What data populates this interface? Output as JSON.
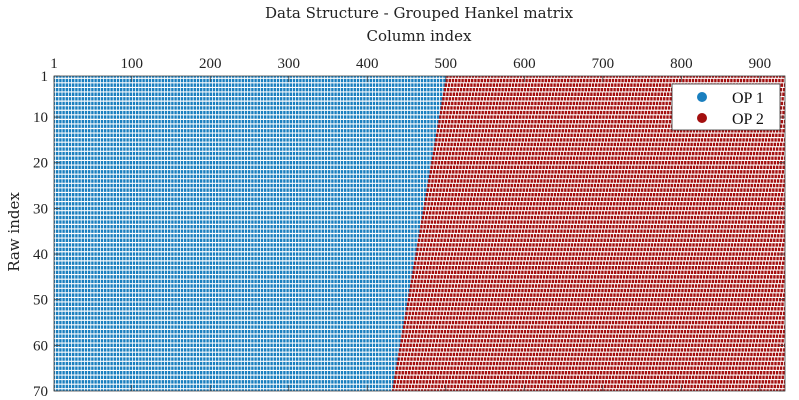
{
  "chart_data": {
    "type": "scatter",
    "title": "Data Structure - Grouped Hankel matrix",
    "xlabel": "Column index",
    "ylabel": "Raw index",
    "xlim": [
      1,
      932
    ],
    "ylim": [
      1,
      70
    ],
    "y_reversed": true,
    "x_axis_position": "top",
    "x_ticks": [
      1,
      100,
      200,
      300,
      400,
      500,
      600,
      700,
      800,
      900
    ],
    "y_ticks": [
      1,
      10,
      20,
      30,
      40,
      50,
      60,
      70
    ],
    "legend_position": "top-right",
    "grid": false,
    "series": [
      {
        "name": "OP 1",
        "color": "#1a7fbf",
        "x_range_row_1": [
          1,
          501
        ],
        "x_range_row_70": [
          1,
          432
        ]
      },
      {
        "name": "OP 2",
        "color": "#a30f0f",
        "x_range_row_1": [
          502,
          932
        ],
        "x_range_row_70": [
          433,
          932
        ]
      }
    ]
  }
}
